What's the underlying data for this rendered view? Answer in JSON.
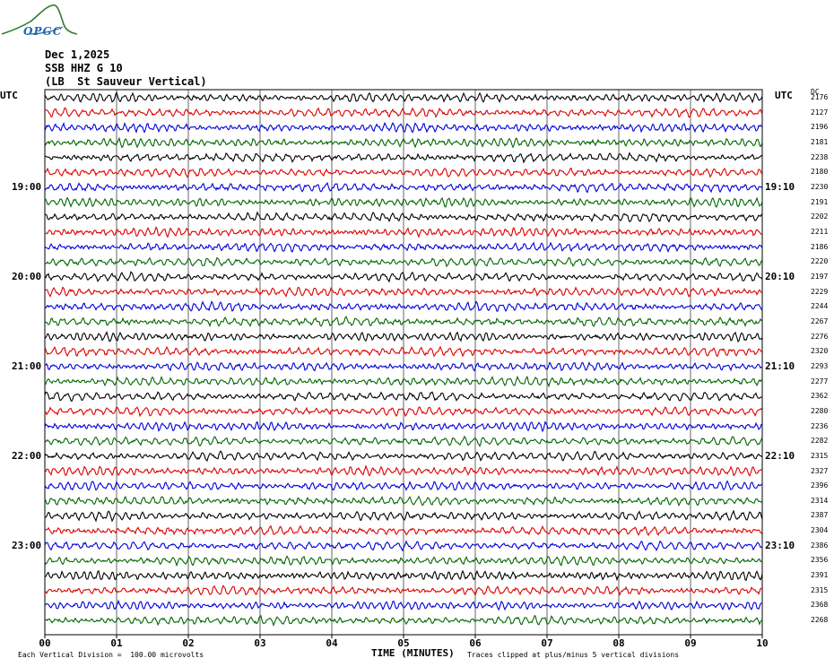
{
  "logo": {
    "text": "OPGC"
  },
  "header": {
    "date": "Dec 1,2025",
    "channel": "SSB HHZ G 10",
    "station": "(LB  St Sauveur Vertical)"
  },
  "left_utc_label": "UTC",
  "right_utc_label": "UTC",
  "dc_label": "DC",
  "footer": {
    "left_note": "Each Vertical Division =  100.00 microvolts",
    "right_note": "Traces clipped at plus/minus 5 vertical divisions"
  },
  "chart_data": {
    "type": "line",
    "xlabel": "TIME (MINUTES)",
    "x_ticks": [
      "00",
      "01",
      "02",
      "03",
      "04",
      "05",
      "06",
      "07",
      "08",
      "09",
      "10"
    ],
    "xlim": [
      0,
      10
    ],
    "grid": true,
    "trace_colors": [
      "#000000",
      "#dd0000",
      "#0000dd",
      "#006600"
    ],
    "left_hour_labels": [
      {
        "row": 6,
        "text": "19:00"
      },
      {
        "row": 12,
        "text": "20:00"
      },
      {
        "row": 18,
        "text": "21:00"
      },
      {
        "row": 24,
        "text": "22:00"
      },
      {
        "row": 30,
        "text": "23:00"
      }
    ],
    "right_hour_labels": [
      {
        "row": 6,
        "text": "19:10"
      },
      {
        "row": 12,
        "text": "20:10"
      },
      {
        "row": 18,
        "text": "21:10"
      },
      {
        "row": 24,
        "text": "22:10"
      },
      {
        "row": 30,
        "text": "23:10"
      }
    ],
    "dc_offsets": [
      2176,
      2127,
      2196,
      2181,
      2238,
      2180,
      2230,
      2191,
      2202,
      2211,
      2186,
      2220,
      2197,
      2229,
      2244,
      2267,
      2276,
      2320,
      2293,
      2277,
      2362,
      2280,
      2236,
      2282,
      2315,
      2327,
      2396,
      2314,
      2387,
      2304,
      2386,
      2356,
      2391,
      2315,
      2368,
      2268
    ]
  }
}
